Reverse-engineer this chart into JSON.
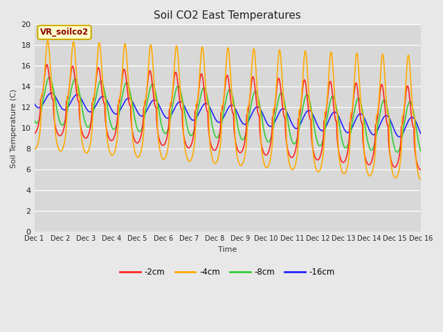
{
  "title": "Soil CO2 East Temperatures",
  "xlabel": "Time",
  "ylabel": "Soil Temperature (C)",
  "ylim": [
    0,
    20
  ],
  "xlim": [
    0,
    15
  ],
  "fig_bg_color": "#e8e8e8",
  "axes_bg_color": "#d8d8d8",
  "legend_label": "VR_soilco2",
  "series_labels": [
    "-2cm",
    "-4cm",
    "-8cm",
    "-16cm"
  ],
  "series_colors": [
    "#ff2222",
    "#ffaa00",
    "#33cc33",
    "#2222ff"
  ],
  "xtick_labels": [
    "Dec 1",
    "Dec 2",
    "Dec 3",
    "Dec 4",
    "Dec 5",
    "Dec 6",
    "Dec 7",
    "Dec 8",
    "Dec 9",
    "Dec 10",
    "Dec 11",
    "Dec 12",
    "Dec 13",
    "Dec 14",
    "Dec 15",
    "Dec 16"
  ],
  "n_days": 15,
  "pts_per_day": 144
}
